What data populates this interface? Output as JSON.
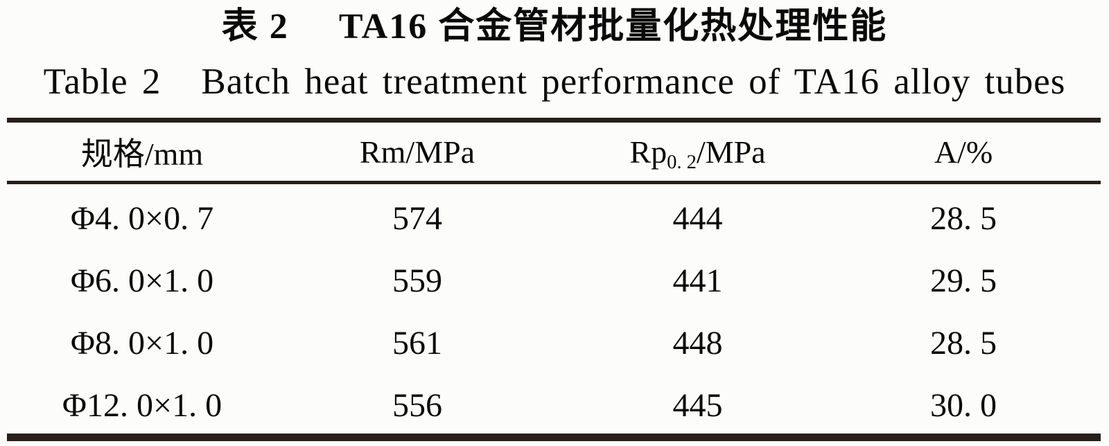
{
  "page": {
    "background": "#fcfcfa",
    "rule_color": "#281f1a",
    "text_color": "#0a0a0a"
  },
  "title": {
    "zh_prefix": "表 2",
    "zh_text": "TA16 合金管材批量化热处理性能",
    "en_prefix": "Table 2",
    "en_text": "Batch heat treatment performance of TA16 alloy tubes"
  },
  "table": {
    "columns": [
      {
        "key": "spec",
        "label": "规格/mm"
      },
      {
        "key": "rm",
        "label": "Rm/MPa"
      },
      {
        "key": "rp",
        "label_prefix": "Rp",
        "label_sub": "0. 2",
        "label_suffix": "/MPa"
      },
      {
        "key": "a",
        "label": "A/%"
      }
    ],
    "rows": [
      {
        "spec": "Φ4. 0×0. 7",
        "rm": "574",
        "rp": "444",
        "a": "28. 5"
      },
      {
        "spec": "Φ6. 0×1. 0",
        "rm": "559",
        "rp": "441",
        "a": "29. 5"
      },
      {
        "spec": "Φ8. 0×1. 0",
        "rm": "561",
        "rp": "448",
        "a": "28. 5"
      },
      {
        "spec": "Φ12. 0×1. 0",
        "rm": "556",
        "rp": "445",
        "a": "30. 0"
      }
    ]
  },
  "chart_data": {
    "type": "table",
    "title": "表 2 TA16 合金管材批量化热处理性能 / Table 2 Batch heat treatment performance of TA16 alloy tubes",
    "columns": [
      "规格/mm",
      "Rm/MPa",
      "Rp0.2/MPa",
      "A/%"
    ],
    "rows": [
      [
        "Φ4.0×0.7",
        574,
        444,
        28.5
      ],
      [
        "Φ6.0×1.0",
        559,
        441,
        29.5
      ],
      [
        "Φ8.0×1.0",
        561,
        448,
        28.5
      ],
      [
        "Φ12.0×1.0",
        556,
        445,
        30.0
      ]
    ]
  }
}
